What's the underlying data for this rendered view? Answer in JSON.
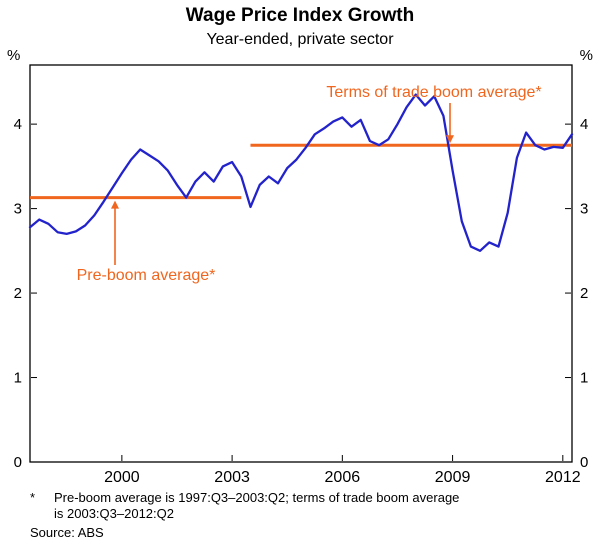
{
  "title": "Wage Price Index Growth",
  "subtitle": "Year-ended, private sector",
  "colors": {
    "line": "#2323CC",
    "accent": "#F0661E",
    "axis": "#000000"
  },
  "axes": {
    "y_unit_left": "%",
    "y_unit_right": "%",
    "y_ticks": [
      0,
      1,
      2,
      3,
      4
    ],
    "x_tick_labels": [
      "2000",
      "2003",
      "2006",
      "2009",
      "2012"
    ],
    "x_tick_indices": [
      10,
      22,
      34,
      46,
      58
    ]
  },
  "annotations": {
    "boom": {
      "text": "Terms of trade boom average*"
    },
    "pre_boom": {
      "text": "Pre-boom average*"
    }
  },
  "footnote": {
    "marker": "*",
    "line1": "Pre-boom average is 1997:Q3–2003:Q2; terms of trade boom average",
    "line2": "is 2003:Q3–2012:Q2",
    "source": "Source: ABS"
  },
  "chart_data": {
    "type": "line",
    "title": "Wage Price Index Growth",
    "subtitle": "Year-ended, private sector",
    "ylabel": "%",
    "ylim": [
      0,
      4.7
    ],
    "grid": false,
    "x_tick_labels": [
      "2000",
      "2003",
      "2006",
      "2009",
      "2012"
    ],
    "series": [
      {
        "name": "Wage Price Index growth, year-ended, private sector",
        "color": "#2323CC",
        "frequency": "quarterly",
        "x_start": "1997:Q3",
        "x_end": "2012:Q2",
        "values": [
          2.78,
          2.87,
          2.82,
          2.72,
          2.7,
          2.73,
          2.8,
          2.92,
          3.08,
          3.25,
          3.42,
          3.58,
          3.7,
          3.63,
          3.56,
          3.45,
          3.28,
          3.13,
          3.32,
          3.43,
          3.32,
          3.5,
          3.55,
          3.38,
          3.02,
          3.28,
          3.38,
          3.3,
          3.48,
          3.58,
          3.72,
          3.88,
          3.95,
          4.03,
          4.08,
          3.97,
          4.05,
          3.8,
          3.75,
          3.82,
          4.0,
          4.2,
          4.35,
          4.22,
          4.33,
          4.1,
          3.45,
          2.85,
          2.55,
          2.5,
          2.6,
          2.55,
          2.95,
          3.6,
          3.9,
          3.75,
          3.7,
          3.73,
          3.72,
          3.88
        ]
      }
    ],
    "reference_lines": [
      {
        "label": "Pre-boom average*",
        "value": 3.13,
        "from": "1997:Q3",
        "to": "2003:Q2",
        "from_index": 0,
        "to_index": 23,
        "color": "#F0661E"
      },
      {
        "label": "Terms of trade boom average*",
        "value": 3.75,
        "from": "2003:Q3",
        "to": "2012:Q2",
        "from_index": 24,
        "to_index": 59,
        "color": "#F0661E"
      }
    ]
  }
}
